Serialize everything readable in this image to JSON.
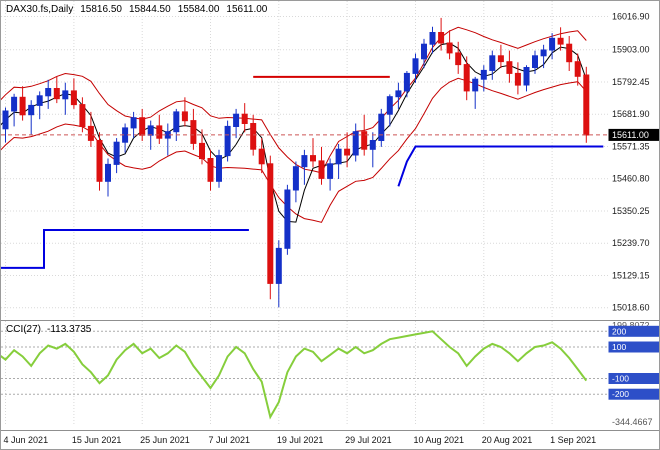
{
  "header": {
    "symbol": "DAX30.fs,Daily",
    "open": "15816.50",
    "high": "15844.50",
    "low": "15584.00",
    "close": "15611.00"
  },
  "cci_header": {
    "label": "CCI(27)",
    "value": "-113.3735"
  },
  "colors": {
    "bull": "#1430C8",
    "bear": "#DD1010",
    "envelope": "#C40000",
    "midline": "#000000",
    "support": "#0000E0",
    "resistance": "#D40000",
    "cci_line": "#86CE3C",
    "level_box": "#2D4FC8",
    "price_tag_bg": "#000000",
    "price_tag_text": "#FFFFFF",
    "current_price_line": "#CC5555"
  },
  "chart_data": {
    "type": "candlestick",
    "title": "DAX30.fs Daily candlestick chart with moving-average envelope, support/resistance lines and CCI(27) sub-window",
    "price_axis": {
      "ticks": [
        {
          "value": 16016.9,
          "label": "16016.90"
        },
        {
          "value": 15903.0,
          "label": "15903.00"
        },
        {
          "value": 15792.45,
          "label": "15792.45"
        },
        {
          "value": 15681.9,
          "label": "15681.90"
        },
        {
          "value": 15571.35,
          "label": "15571.35"
        },
        {
          "value": 15460.8,
          "label": "15460.80"
        },
        {
          "value": 15350.25,
          "label": "15350.25"
        },
        {
          "value": 15239.7,
          "label": "15239.70"
        },
        {
          "value": 15129.15,
          "label": "15129.15"
        },
        {
          "value": 15018.6,
          "label": "15018.60"
        }
      ],
      "current_price": 15611.0,
      "current_price_label": "15611.00"
    },
    "x_axis": {
      "ticks": [
        {
          "label": "4 Jun 2021",
          "bar": 1
        },
        {
          "label": "15 Jun 2021",
          "bar": 9
        },
        {
          "label": "25 Jun 2021",
          "bar": 17
        },
        {
          "label": "7 Jul 2021",
          "bar": 25
        },
        {
          "label": "19 Jul 2021",
          "bar": 33
        },
        {
          "label": "29 Jul 2021",
          "bar": 41
        },
        {
          "label": "10 Aug 2021",
          "bar": 49
        },
        {
          "label": "20 Aug 2021",
          "bar": 57
        },
        {
          "label": "1 Sep 2021",
          "bar": 65
        }
      ]
    },
    "candles": [
      [
        15680,
        15745,
        15600,
        15632
      ],
      [
        15632,
        15705,
        15585,
        15693
      ],
      [
        15693,
        15752,
        15640,
        15740
      ],
      [
        15740,
        15778,
        15660,
        15680
      ],
      [
        15680,
        15730,
        15610,
        15712
      ],
      [
        15712,
        15760,
        15665,
        15745
      ],
      [
        15745,
        15800,
        15700,
        15770
      ],
      [
        15770,
        15812,
        15720,
        15735
      ],
      [
        15735,
        15790,
        15680,
        15762
      ],
      [
        15762,
        15805,
        15700,
        15715
      ],
      [
        15715,
        15740,
        15620,
        15640
      ],
      [
        15640,
        15690,
        15570,
        15592
      ],
      [
        15592,
        15620,
        15420,
        15452
      ],
      [
        15452,
        15530,
        15400,
        15510
      ],
      [
        15510,
        15600,
        15480,
        15586
      ],
      [
        15586,
        15650,
        15550,
        15635
      ],
      [
        15635,
        15690,
        15600,
        15670
      ],
      [
        15670,
        15700,
        15590,
        15610
      ],
      [
        15610,
        15660,
        15560,
        15642
      ],
      [
        15642,
        15680,
        15580,
        15600
      ],
      [
        15600,
        15650,
        15540,
        15622
      ],
      [
        15622,
        15700,
        15590,
        15690
      ],
      [
        15690,
        15740,
        15640,
        15660
      ],
      [
        15660,
        15700,
        15560,
        15582
      ],
      [
        15582,
        15630,
        15510,
        15530
      ],
      [
        15530,
        15560,
        15420,
        15452
      ],
      [
        15452,
        15560,
        15430,
        15540
      ],
      [
        15540,
        15660,
        15520,
        15640
      ],
      [
        15640,
        15700,
        15600,
        15682
      ],
      [
        15682,
        15720,
        15620,
        15650
      ],
      [
        15650,
        15680,
        15540,
        15562
      ],
      [
        15562,
        15600,
        15480,
        15512
      ],
      [
        15512,
        15540,
        15048,
        15102
      ],
      [
        15102,
        15250,
        15020,
        15222
      ],
      [
        15222,
        15440,
        15200,
        15422
      ],
      [
        15422,
        15520,
        15380,
        15502
      ],
      [
        15502,
        15560,
        15440,
        15540
      ],
      [
        15540,
        15600,
        15500,
        15522
      ],
      [
        15522,
        15570,
        15440,
        15462
      ],
      [
        15462,
        15530,
        15420,
        15512
      ],
      [
        15512,
        15580,
        15460,
        15562
      ],
      [
        15562,
        15620,
        15500,
        15542
      ],
      [
        15542,
        15650,
        15520,
        15622
      ],
      [
        15622,
        15680,
        15540,
        15562
      ],
      [
        15562,
        15620,
        15500,
        15592
      ],
      [
        15592,
        15700,
        15570,
        15682
      ],
      [
        15682,
        15750,
        15640,
        15742
      ],
      [
        15742,
        15790,
        15700,
        15762
      ],
      [
        15762,
        15830,
        15740,
        15822
      ],
      [
        15822,
        15890,
        15790,
        15872
      ],
      [
        15872,
        15940,
        15840,
        15922
      ],
      [
        15922,
        15982,
        15890,
        15962
      ],
      [
        15962,
        16012,
        15900,
        15926
      ],
      [
        15926,
        15970,
        15870,
        15892
      ],
      [
        15892,
        15930,
        15820,
        15852
      ],
      [
        15852,
        15880,
        15730,
        15762
      ],
      [
        15762,
        15810,
        15700,
        15802
      ],
      [
        15802,
        15850,
        15760,
        15832
      ],
      [
        15832,
        15900,
        15800,
        15882
      ],
      [
        15882,
        15920,
        15840,
        15862
      ],
      [
        15862,
        15900,
        15790,
        15822
      ],
      [
        15822,
        15860,
        15750,
        15782
      ],
      [
        15782,
        15850,
        15760,
        15842
      ],
      [
        15842,
        15900,
        15820,
        15882
      ],
      [
        15882,
        15920,
        15840,
        15902
      ],
      [
        15902,
        15960,
        15870,
        15942
      ],
      [
        15942,
        15980,
        15900,
        15922
      ],
      [
        15922,
        15950,
        15830,
        15862
      ],
      [
        15862,
        15890,
        15780,
        15812
      ],
      [
        15816.5,
        15844.5,
        15584,
        15611
      ]
    ],
    "overlays": {
      "envelope": {
        "ma_period": 7,
        "mid_period": 4,
        "deviation_pct": 0.55
      },
      "lines": [
        {
          "name": "support-step-left",
          "color_key": "support",
          "width": 2,
          "points": [
            [
              -1,
              15155
            ],
            [
              5.5,
              15155
            ],
            [
              5.5,
              15285
            ],
            [
              29.5,
              15285
            ]
          ]
        },
        {
          "name": "resistance-august",
          "color_key": "resistance",
          "width": 2,
          "points": [
            [
              30,
              15810
            ],
            [
              46,
              15810
            ]
          ]
        },
        {
          "name": "support-right",
          "color_key": "support",
          "width": 2,
          "points": [
            [
              47,
              15435
            ],
            [
              48,
              15520
            ],
            [
              49,
              15571.35
            ],
            [
              71,
              15571.35
            ]
          ]
        }
      ]
    },
    "cci": {
      "period": 27,
      "last_value": -113.3735,
      "scale_max": 199.8072,
      "scale_max_label": "199.8072",
      "scale_min": -344.4667,
      "scale_min_label": "-344.4667",
      "levels": [
        {
          "value": 200,
          "label": "200"
        },
        {
          "value": 100,
          "label": "100"
        },
        {
          "value": -100,
          "label": "-100"
        },
        {
          "value": -200,
          "label": "-200"
        }
      ],
      "values": [
        60,
        20,
        80,
        40,
        -20,
        60,
        110,
        90,
        120,
        70,
        -10,
        -60,
        -130,
        -80,
        20,
        80,
        120,
        60,
        90,
        30,
        60,
        110,
        70,
        -20,
        -90,
        -160,
        -80,
        40,
        100,
        60,
        -40,
        -120,
        -344.47,
        -250,
        -60,
        40,
        90,
        70,
        10,
        50,
        90,
        60,
        100,
        60,
        80,
        120,
        150,
        160,
        170,
        180,
        190,
        199.81,
        150,
        100,
        60,
        -20,
        40,
        90,
        120,
        100,
        60,
        10,
        60,
        100,
        110,
        130,
        90,
        30,
        -40,
        -113.37
      ]
    }
  }
}
